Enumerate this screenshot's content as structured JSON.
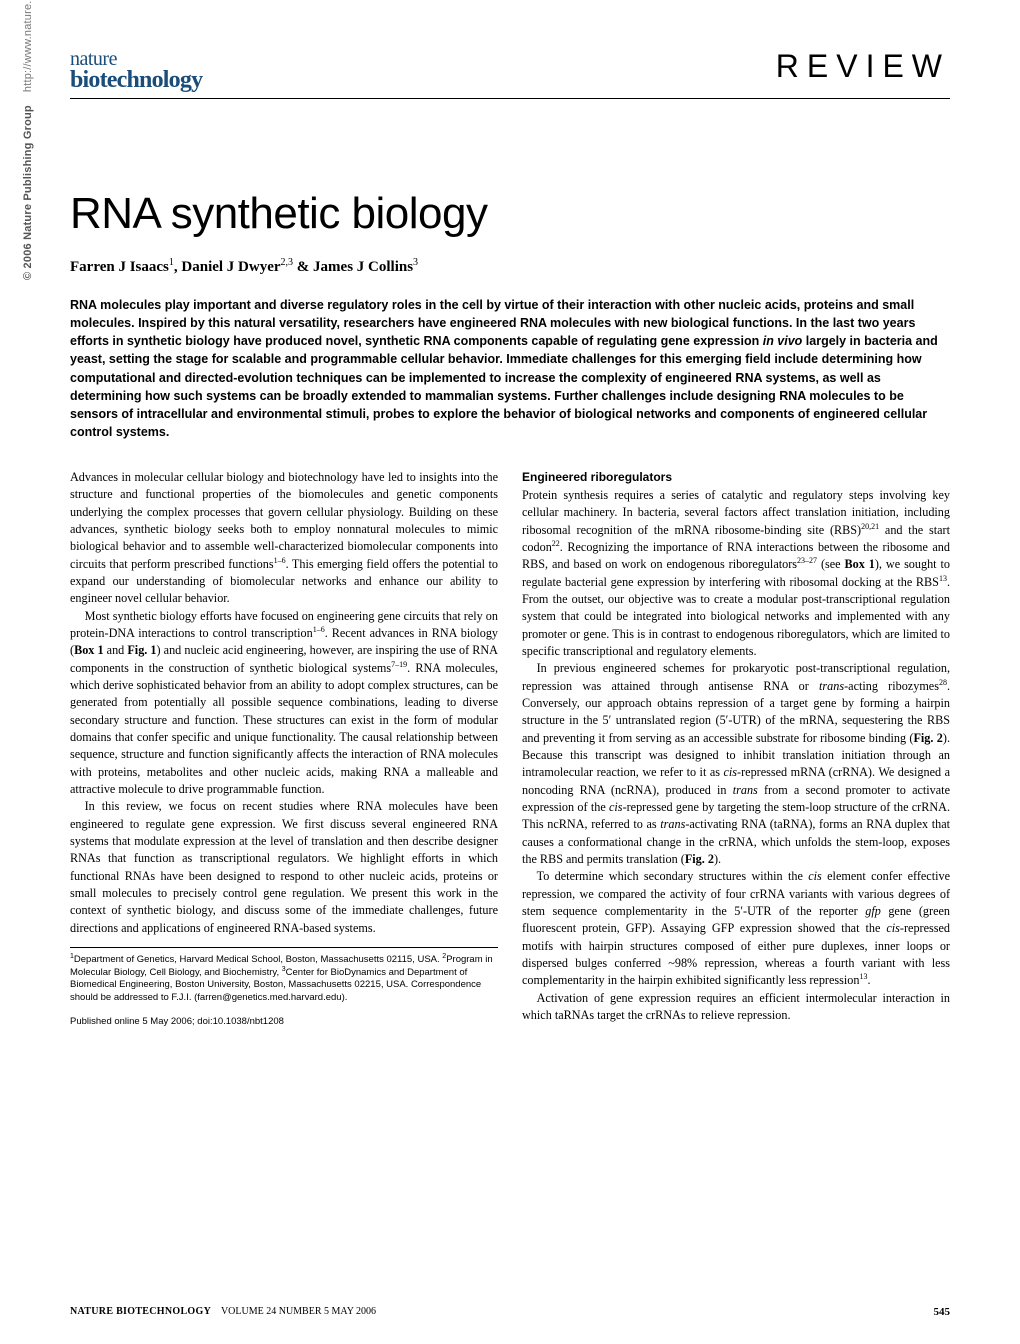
{
  "sidebar": {
    "copyright": "© 2006 Nature Publishing Group",
    "url": "http://www.nature.com/naturebiotechnology",
    "logo": "npg"
  },
  "header": {
    "journal_line1": "nature",
    "journal_line2": "biotechnology",
    "section_label": "REVIEW"
  },
  "article": {
    "title": "RNA synthetic biology",
    "authors_html": "Farren J Isaacs<sup>1</sup>, Daniel J Dwyer<sup>2,3</sup> & James J Collins<sup>3</sup>"
  },
  "abstract": "RNA molecules play important and diverse regulatory roles in the cell by virtue of their interaction with other nucleic acids, proteins and small molecules. Inspired by this natural versatility, researchers have engineered RNA molecules with new biological functions. In the last two years efforts in synthetic biology have produced novel, synthetic RNA components capable of regulating gene expression <span class=\"ital\">in vivo</span> largely in bacteria and yeast, setting the stage for scalable and programmable cellular behavior. Immediate challenges for this emerging field include determining how computational and directed-evolution techniques can be implemented to increase the complexity of engineered RNA systems, as well as determining how such systems can be broadly extended to mammalian systems. Further challenges include designing RNA molecules to be sensors of intracellular and environmental stimuli, probes to explore the behavior of biological networks and components of engineered cellular control systems.",
  "left_column": {
    "p1": "Advances in molecular cellular biology and biotechnology have led to insights into the structure and functional properties of the biomolecules and genetic components underlying the complex processes that govern cellular physiology. Building on these advances, synthetic biology seeks both to employ nonnatural molecules to mimic biological behavior and to assemble well-characterized biomolecular components into circuits that perform prescribed functions<sup>1–6</sup>. This emerging field offers the potential to expand our understanding of biomolecular networks and enhance our ability to engineer novel cellular behavior.",
    "p2": "Most synthetic biology efforts have focused on engineering gene circuits that rely on protein-DNA interactions to control transcription<sup>1–6</sup>. Recent advances in RNA biology (<b>Box 1</b> and <b>Fig. 1</b>) and nucleic acid engineering, however, are inspiring the use of RNA components in the construction of synthetic biological systems<sup>7–19</sup>. RNA molecules, which derive sophisticated behavior from an ability to adopt complex structures, can be generated from potentially all possible sequence combinations, leading to diverse secondary structure and function. These structures can exist in the form of modular domains that confer specific and unique functionality. The causal relationship between sequence, structure and function significantly affects the interaction of RNA molecules with proteins, metabolites and other nucleic acids, making RNA a malleable and attractive molecule to drive programmable function.",
    "p3": "In this review, we focus on recent studies where RNA molecules have been engineered to regulate gene expression. We first discuss several engineered RNA systems that modulate expression at the level of translation and then describe designer RNAs that function as transcriptional regulators. We highlight efforts in which functional RNAs have been designed to respond to other nucleic acids, proteins or small molecules to precisely control gene regulation. We present this work in the context of synthetic biology, and discuss some of the immediate challenges, future directions and applications of engineered RNA-based systems."
  },
  "affiliations": "<sup>1</sup>Department of Genetics, Harvard Medical School, Boston, Massachusetts 02115, USA. <sup>2</sup>Program in Molecular Biology, Cell Biology, and Biochemistry, <sup>3</sup>Center for BioDynamics and Department of Biomedical Engineering, Boston University, Boston, Massachusetts 02215, USA. Correspondence should be addressed to F.J.I. (farren@genetics.med.harvard.edu).",
  "pub_info": "Published online 5 May 2006; doi:10.1038/nbt1208",
  "right_column": {
    "heading": "Engineered riboregulators",
    "p1": "Protein synthesis requires a series of catalytic and regulatory steps involving key cellular machinery. In bacteria, several factors affect translation initiation, including ribosomal recognition of the mRNA ribosome-binding site (RBS)<sup>20,21</sup> and the start codon<sup>22</sup>. Recognizing the importance of RNA interactions between the ribosome and RBS, and based on work on endogenous riboregulators<sup>23–27</sup> (see <b>Box 1</b>), we sought to regulate bacterial gene expression by interfering with ribosomal docking at the RBS<sup>13</sup>. From the outset, our objective was to create a modular post-transcriptional regulation system that could be integrated into biological networks and implemented with any promoter or gene. This is in contrast to endogenous riboregulators, which are limited to specific transcriptional and regulatory elements.",
    "p2": "In previous engineered schemes for prokaryotic post-transcriptional regulation, repression was attained through antisense RNA or <span class=\"ital\">trans</span>-acting ribozymes<sup>28</sup>. Conversely, our approach obtains repression of a target gene by forming a hairpin structure in the 5′ untranslated region (5′-UTR) of the mRNA, sequestering the RBS and preventing it from serving as an accessible substrate for ribosome binding (<b>Fig. 2</b>). Because this transcript was designed to inhibit translation initiation through an intramolecular reaction, we refer to it as <span class=\"ital\">cis</span>-repressed mRNA (crRNA). We designed a noncoding RNA (ncRNA), produced in <span class=\"ital\">trans</span> from a second promoter to activate expression of the <span class=\"ital\">cis</span>-repressed gene by targeting the stem-loop structure of the crRNA. This ncRNA, referred to as <span class=\"ital\">trans</span>-activating RNA (taRNA), forms an RNA duplex that causes a conformational change in the crRNA, which unfolds the stem-loop, exposes the RBS and permits translation (<b>Fig. 2</b>).",
    "p3": "To determine which secondary structures within the <span class=\"ital\">cis</span> element confer effective repression, we compared the activity of four crRNA variants with various degrees of stem sequence complementarity in the 5′-UTR of the reporter <span class=\"ital\">gfp</span> gene (green fluorescent protein, GFP). Assaying GFP expression showed that the <span class=\"ital\">cis</span>-repressed motifs with hairpin structures composed of either pure duplexes, inner loops or dispersed bulges conferred ~98% repression, whereas a fourth variant with less complementarity in the hairpin exhibited significantly less repression<sup>13</sup>.",
    "p4": "Activation of gene expression requires an efficient intermolecular interaction in which taRNAs target the crRNAs to relieve repression."
  },
  "footer": {
    "journal": "NATURE BIOTECHNOLOGY",
    "issue": "VOLUME 24   NUMBER 5   MAY 2006",
    "page": "545"
  },
  "colors": {
    "journal_blue": "#1a4d7a",
    "sidebar_gray": "#777777",
    "text": "#000000",
    "background": "#ffffff"
  },
  "typography": {
    "title_fontsize": 44,
    "section_label_fontsize": 32,
    "author_fontsize": 15,
    "abstract_fontsize": 12.5,
    "body_fontsize": 12.2,
    "affil_fontsize": 9.5,
    "footer_fontsize": 10
  }
}
